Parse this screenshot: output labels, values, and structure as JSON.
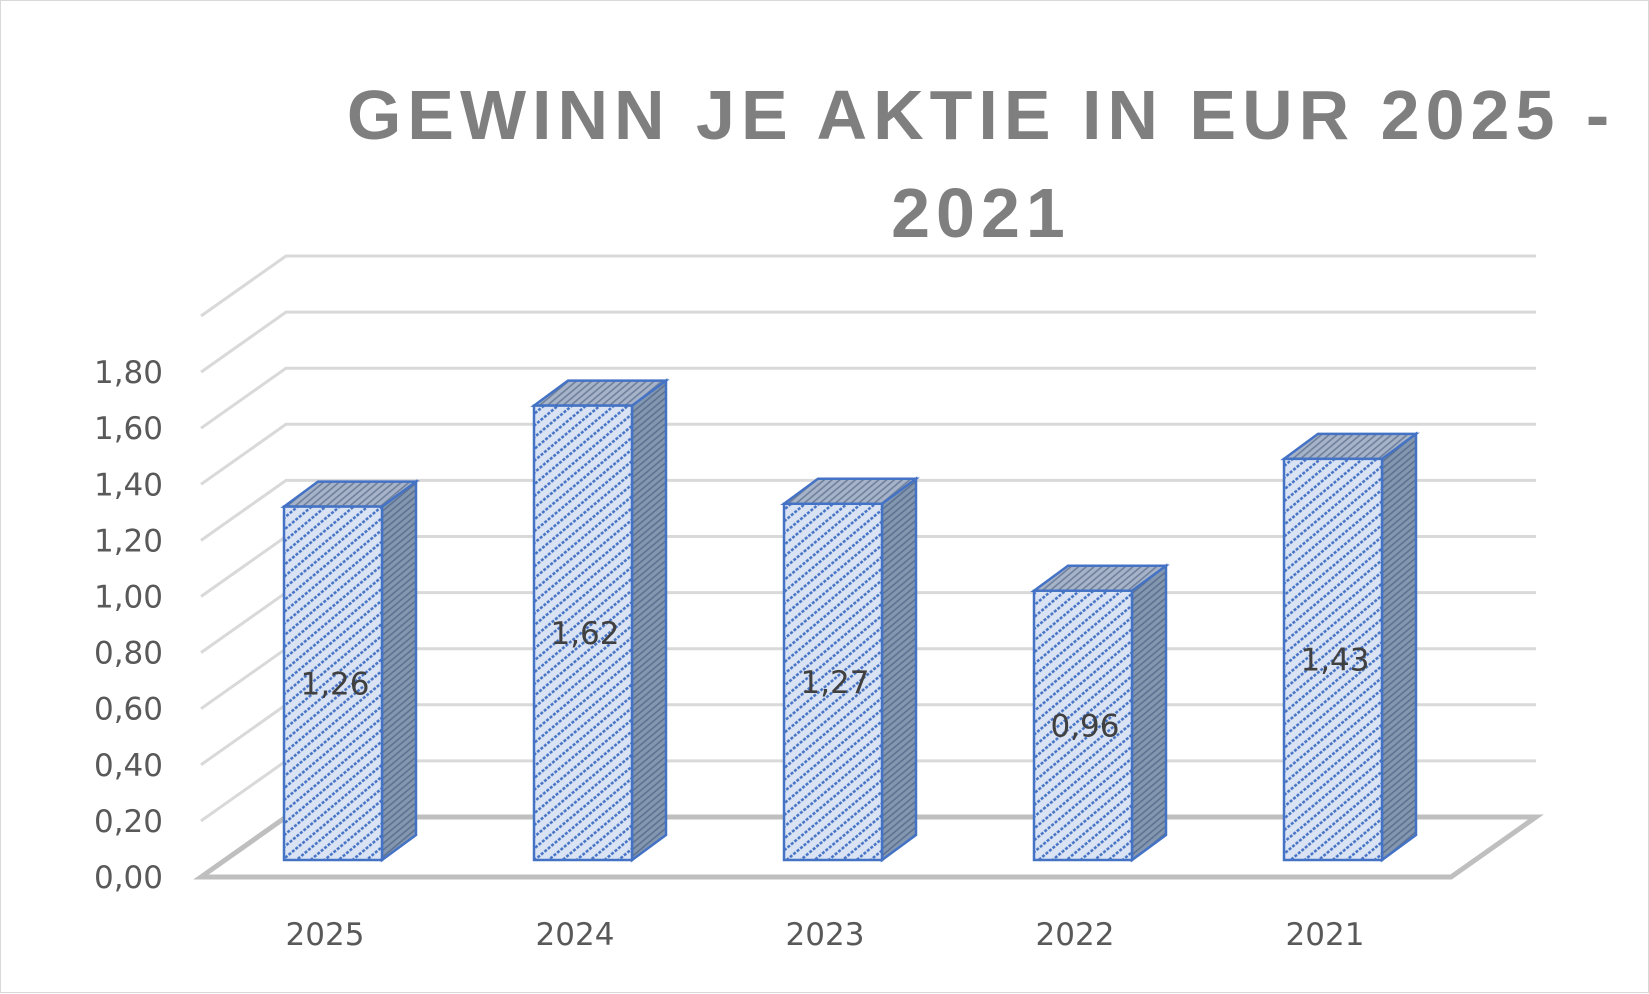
{
  "chart_data": {
    "type": "bar",
    "title_lines": [
      "GEWINN JE AKTIE IN EUR 2025 -",
      "2021"
    ],
    "categories": [
      "2025",
      "2024",
      "2023",
      "2022",
      "2021"
    ],
    "values": [
      1.26,
      1.62,
      1.27,
      0.96,
      1.43
    ],
    "value_labels": [
      "1,26",
      "1,62",
      "1,27",
      "0,96",
      "1,43"
    ],
    "y_ticks": [
      "0,00",
      "0,20",
      "0,40",
      "0,60",
      "0,80",
      "1,00",
      "1,20",
      "1,40",
      "1,60",
      "1,80"
    ],
    "ylim": [
      0,
      2.0
    ],
    "grid": true,
    "legend": "none",
    "style": "3d-column",
    "colors": {
      "bar_front": "#dae3f3",
      "bar_hatch": "#4472c4",
      "bar_side": "#8497b0",
      "bar_outline": "#4472c4",
      "grid": "#d9d9d9",
      "floor": "#bfbfbf"
    }
  }
}
